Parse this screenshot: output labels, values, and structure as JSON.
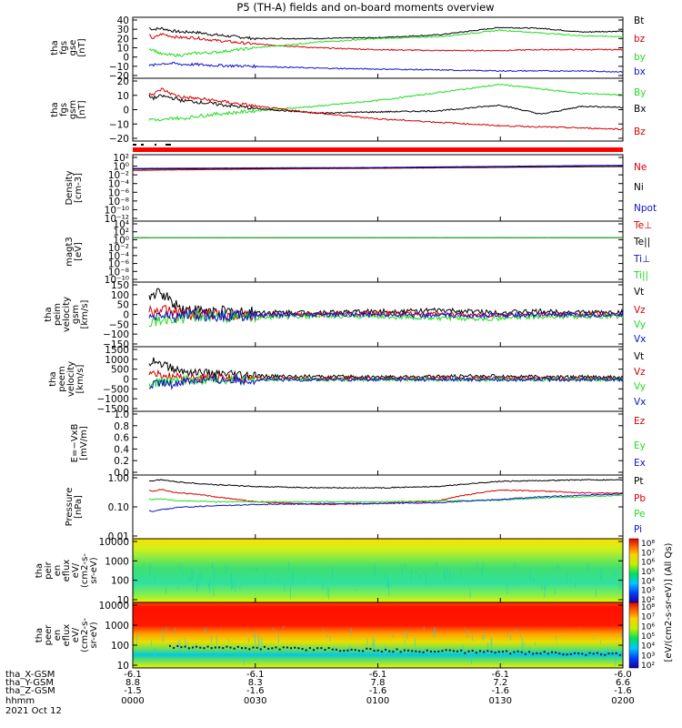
{
  "title": "P5 (TH-A) fields and on-board moments overview",
  "colors": {
    "black": "#000000",
    "red": "#d40000",
    "green": "#22dd22",
    "blue": "#1010d0"
  },
  "chart_data": [
    {
      "type": "line",
      "panel": "fgs_gse",
      "ylabel": [
        "tha",
        "fgs",
        "gse",
        "[nT]"
      ],
      "yticks": [
        "40",
        "30",
        "20",
        "10",
        "0",
        "−10",
        "−20"
      ],
      "ylim": [
        -20,
        40
      ],
      "legend": [
        "Bt",
        "bz",
        "by",
        "bx"
      ],
      "series": [
        {
          "name": "Bt",
          "color": "black",
          "x": [
            0,
            3,
            5,
            7,
            10,
            12,
            15,
            20,
            30,
            45,
            60,
            75,
            90,
            100,
            110,
            120
          ],
          "values": [
            26,
            33,
            30,
            31,
            28,
            27,
            27,
            24,
            20,
            20,
            21,
            24,
            32,
            31,
            27,
            28
          ]
        },
        {
          "name": "bz",
          "color": "red",
          "x": [
            0,
            3,
            5,
            7,
            10,
            12,
            15,
            20,
            30,
            45,
            60,
            75,
            90,
            100,
            110,
            120
          ],
          "values": [
            15,
            27,
            20,
            25,
            22,
            21,
            21,
            18,
            14,
            10,
            8,
            7,
            7,
            8,
            8,
            8
          ]
        },
        {
          "name": "by",
          "color": "green",
          "x": [
            0,
            3,
            5,
            7,
            10,
            12,
            15,
            20,
            30,
            45,
            60,
            75,
            90,
            100,
            110,
            120
          ],
          "values": [
            5,
            10,
            8,
            3,
            2,
            2,
            4,
            5,
            10,
            16,
            20,
            22,
            29,
            26,
            23,
            22
          ]
        },
        {
          "name": "bx",
          "color": "blue",
          "x": [
            0,
            3,
            5,
            7,
            10,
            12,
            15,
            20,
            30,
            45,
            60,
            75,
            90,
            100,
            110,
            120
          ],
          "values": [
            -13,
            -10,
            -9,
            -7,
            -7,
            -8,
            -8,
            -9,
            -10,
            -12,
            -13,
            -14,
            -15,
            -15,
            -15,
            -16
          ]
        }
      ]
    },
    {
      "type": "line",
      "panel": "fgs_gsm",
      "ylabel": [
        "tha",
        "fgs",
        "gsm",
        "[nT]"
      ],
      "yticks": [
        "20",
        "10",
        "0",
        "−10",
        "−20"
      ],
      "ylim": [
        -25,
        25
      ],
      "legend": [
        "By",
        "Bx",
        "Bz"
      ],
      "series": [
        {
          "name": "By",
          "color": "green",
          "x": [
            0,
            3,
            5,
            7,
            10,
            12,
            15,
            20,
            30,
            45,
            60,
            75,
            90,
            100,
            110,
            120
          ],
          "values": [
            -5,
            -10,
            -8,
            -10,
            -7,
            -8,
            -6,
            -4,
            -1,
            3,
            8,
            15,
            22,
            18,
            14,
            13
          ]
        },
        {
          "name": "Bx",
          "color": "black",
          "x": [
            0,
            3,
            5,
            7,
            10,
            12,
            15,
            20,
            30,
            45,
            60,
            75,
            90,
            100,
            110,
            120
          ],
          "values": [
            0,
            14,
            10,
            12,
            10,
            8,
            7,
            5,
            1,
            -3,
            -2,
            -1,
            4,
            -4,
            3,
            2
          ]
        },
        {
          "name": "Bz",
          "color": "red",
          "x": [
            0,
            3,
            5,
            7,
            10,
            12,
            15,
            20,
            30,
            45,
            60,
            75,
            90,
            100,
            110,
            120
          ],
          "values": [
            3,
            18,
            13,
            18,
            13,
            11,
            10,
            8,
            3,
            -3,
            -8,
            -11,
            -14,
            -15,
            -16,
            -17
          ]
        }
      ]
    },
    {
      "type": "line",
      "panel": "density",
      "scale": "log",
      "ylabel": [
        "Density",
        "[cm-3]"
      ],
      "yticks": [
        "10²",
        "10⁰",
        "10⁻²",
        "10⁻⁴",
        "10⁻⁶",
        "10⁻⁸",
        "10⁻¹⁰",
        "10⁻¹²"
      ],
      "ylim": [
        -12,
        2
      ],
      "legend": [
        "Ne",
        "Ni",
        "Npot"
      ],
      "series": [
        {
          "name": "Ne",
          "color": "red",
          "x": [
            0,
            30,
            60,
            90,
            120
          ],
          "values": [
            0.1,
            0.2,
            0.3,
            0.5,
            0.8
          ]
        },
        {
          "name": "Ni",
          "color": "black",
          "x": [
            0,
            30,
            60,
            90,
            120
          ],
          "values": [
            0.2,
            0.3,
            0.4,
            0.6,
            0.9
          ]
        },
        {
          "name": "Npot",
          "color": "blue",
          "x": [
            0,
            30,
            60,
            90,
            120
          ],
          "values": [
            0.3,
            0.4,
            0.5,
            0.9,
            1.6
          ]
        }
      ]
    },
    {
      "type": "line",
      "panel": "temperature",
      "scale": "log",
      "ylabel": [
        "magt3",
        "[eV]"
      ],
      "yticks": [
        "10⁴",
        "10²",
        "10⁰",
        "10⁻²",
        "10⁻⁴",
        "10⁻⁶",
        "10⁻⁸",
        "10⁻¹⁰"
      ],
      "ylim": [
        -10,
        4
      ],
      "legend": [
        "Te⊥",
        "Te||",
        "Ti⊥",
        "Ti||"
      ],
      "series": [
        {
          "name": "Te⊥",
          "color": "red",
          "x": [
            0,
            30,
            60,
            90,
            120
          ],
          "values": [
            3.3,
            3.3,
            3.3,
            3.3,
            3.3
          ]
        },
        {
          "name": "Te||",
          "color": "black",
          "x": [
            0,
            30,
            60,
            90,
            120
          ],
          "values": [
            3.4,
            3.4,
            3.4,
            3.4,
            3.4
          ]
        },
        {
          "name": "Ti⊥",
          "color": "blue",
          "x": [
            0,
            30,
            60,
            90,
            120
          ],
          "values": [
            3.5,
            3.5,
            3.5,
            3.5,
            3.5
          ]
        },
        {
          "name": "Ti||",
          "color": "green",
          "x": [
            0,
            30,
            60,
            90,
            120
          ],
          "values": [
            3.5,
            3.5,
            3.5,
            3.5,
            3.5
          ]
        }
      ]
    },
    {
      "type": "line",
      "panel": "peim_velocity",
      "ylabel": [
        "tha",
        "peim",
        "velocity",
        "gsm",
        "[km/s]"
      ],
      "yticks": [
        "150",
        "100",
        "50",
        "0",
        "−50",
        "−100",
        "−150"
      ],
      "ylim": [
        -150,
        150
      ],
      "legend": [
        "Vt",
        "Vz",
        "Vy",
        "Vx"
      ],
      "series": [
        {
          "name": "Vt",
          "color": "black",
          "x": [
            0,
            3,
            5,
            7,
            10,
            12,
            15,
            20,
            30,
            45,
            60,
            75,
            90,
            100,
            110,
            120
          ],
          "values": [
            40,
            80,
            100,
            110,
            60,
            30,
            20,
            15,
            10,
            10,
            15,
            20,
            10,
            15,
            10,
            10
          ]
        },
        {
          "name": "Vz",
          "color": "red",
          "x": [
            0,
            3,
            5,
            7,
            10,
            12,
            15,
            20,
            30,
            45,
            60,
            75,
            90,
            100,
            110,
            120
          ],
          "values": [
            20,
            30,
            10,
            20,
            10,
            5,
            0,
            0,
            -5,
            0,
            5,
            0,
            -5,
            0,
            0,
            0
          ]
        },
        {
          "name": "Vy",
          "color": "green",
          "x": [
            0,
            3,
            5,
            7,
            10,
            12,
            15,
            20,
            30,
            45,
            60,
            75,
            90,
            100,
            110,
            120
          ],
          "values": [
            -20,
            -60,
            -40,
            -30,
            -20,
            -20,
            -10,
            -10,
            -15,
            -10,
            -10,
            -20,
            -20,
            -10,
            -10,
            -10
          ]
        },
        {
          "name": "Vx",
          "color": "blue",
          "x": [
            0,
            3,
            5,
            7,
            10,
            12,
            15,
            20,
            30,
            45,
            60,
            75,
            90,
            100,
            110,
            120
          ],
          "values": [
            -10,
            -30,
            -20,
            0,
            -10,
            0,
            -5,
            -5,
            -5,
            0,
            0,
            -5,
            -5,
            0,
            -5,
            0
          ]
        }
      ]
    },
    {
      "type": "line",
      "panel": "peem_velocity",
      "ylabel": [
        "tha",
        "peem",
        "velocity",
        "[km/s]"
      ],
      "yticks": [
        "1500",
        "1000",
        "500",
        "0",
        "−500",
        "−1000",
        "−1500"
      ],
      "ylim": [
        -1500,
        1500
      ],
      "legend": [
        "Vt",
        "Vz",
        "Vy",
        "Vx"
      ],
      "series": [
        {
          "name": "Vt",
          "color": "black",
          "x": [
            0,
            3,
            5,
            7,
            10,
            12,
            15,
            20,
            30,
            45,
            60,
            75,
            90,
            100,
            110,
            120
          ],
          "values": [
            100,
            600,
            1000,
            800,
            500,
            400,
            350,
            250,
            150,
            120,
            100,
            120,
            150,
            100,
            100,
            80
          ]
        },
        {
          "name": "Vz",
          "color": "red",
          "x": [
            0,
            3,
            5,
            7,
            10,
            12,
            15,
            20,
            30,
            45,
            60,
            75,
            90,
            100,
            110,
            120
          ],
          "values": [
            50,
            200,
            300,
            150,
            100,
            80,
            50,
            40,
            30,
            20,
            20,
            30,
            40,
            20,
            20,
            20
          ]
        },
        {
          "name": "Vy",
          "color": "green",
          "x": [
            0,
            3,
            5,
            7,
            10,
            12,
            15,
            20,
            30,
            45,
            60,
            75,
            90,
            100,
            110,
            120
          ],
          "values": [
            -50,
            -400,
            -200,
            -150,
            -100,
            -60,
            -50,
            -40,
            -30,
            -30,
            -20,
            -30,
            -20,
            -30,
            -20,
            -20
          ]
        },
        {
          "name": "Vx",
          "color": "blue",
          "x": [
            0,
            3,
            5,
            7,
            10,
            12,
            15,
            20,
            30,
            45,
            60,
            75,
            90,
            100,
            110,
            120
          ],
          "values": [
            0,
            -600,
            -300,
            -200,
            -300,
            -100,
            -60,
            -50,
            -40,
            -30,
            -20,
            -30,
            -30,
            -20,
            -20,
            -20
          ]
        }
      ]
    },
    {
      "type": "line",
      "panel": "efield",
      "ylabel": [
        "E=−VxB",
        "[mV/m]"
      ],
      "yticks": [
        "1.0",
        "0.8",
        "0.6",
        "0.4",
        "0.2",
        "0.0"
      ],
      "ylim": [
        0,
        1
      ],
      "legend": [
        "Ez",
        "Ey",
        "Ex"
      ],
      "series": []
    },
    {
      "type": "line",
      "panel": "pressure",
      "scale": "log",
      "ylabel": [
        "Pressure",
        "[nPa]"
      ],
      "yticks": [
        "1.00",
        "0.10",
        "0.01"
      ],
      "ylim": [
        -2,
        0
      ],
      "legend": [
        "Pt",
        "Pb",
        "Pe",
        "Pi"
      ],
      "series": [
        {
          "name": "Pt",
          "color": "black",
          "x": [
            0,
            3,
            5,
            7,
            10,
            12,
            15,
            20,
            30,
            45,
            60,
            75,
            90,
            100,
            110,
            120
          ],
          "values": [
            0.55,
            0.75,
            0.8,
            0.85,
            0.75,
            0.7,
            0.65,
            0.58,
            0.5,
            0.45,
            0.45,
            0.5,
            0.75,
            0.8,
            0.85,
            0.85
          ]
        },
        {
          "name": "Pb",
          "color": "red",
          "x": [
            0,
            3,
            5,
            7,
            10,
            12,
            15,
            20,
            30,
            45,
            60,
            75,
            90,
            100,
            110,
            120
          ],
          "values": [
            0.25,
            0.4,
            0.35,
            0.4,
            0.32,
            0.3,
            0.28,
            0.22,
            0.15,
            0.12,
            0.13,
            0.16,
            0.38,
            0.35,
            0.3,
            0.3
          ]
        },
        {
          "name": "Pe",
          "color": "green",
          "x": [
            0,
            3,
            5,
            7,
            10,
            12,
            15,
            20,
            30,
            45,
            60,
            75,
            90,
            100,
            110,
            120
          ],
          "values": [
            0.15,
            0.2,
            0.18,
            0.19,
            0.17,
            0.16,
            0.16,
            0.15,
            0.15,
            0.15,
            0.15,
            0.16,
            0.17,
            0.2,
            0.22,
            0.25
          ]
        },
        {
          "name": "Pi",
          "color": "blue",
          "x": [
            0,
            3,
            5,
            7,
            10,
            12,
            15,
            20,
            30,
            45,
            60,
            75,
            90,
            100,
            110,
            120
          ],
          "values": [
            0.1,
            0.08,
            0.07,
            0.08,
            0.09,
            0.1,
            0.1,
            0.11,
            0.12,
            0.13,
            0.13,
            0.14,
            0.18,
            0.22,
            0.25,
            0.28
          ]
        }
      ]
    },
    {
      "type": "heatmap",
      "panel": "peir_en_eflux",
      "ylabel": [
        "tha",
        "peir",
        "en",
        "eflux",
        "eV/",
        "(cm2-s-",
        "sr-eV)"
      ],
      "yticks": [
        "10000",
        "1000",
        "100",
        "10"
      ]
    },
    {
      "type": "heatmap",
      "panel": "peer_en_eflux",
      "ylabel": [
        "tha",
        "peer",
        "en",
        "eflux",
        "eV/",
        "(cm2-s-",
        "sr-eV)"
      ],
      "yticks": [
        "10000",
        "1000",
        "100",
        "10"
      ]
    }
  ],
  "colorbar": {
    "ticks": [
      "10⁸",
      "10⁷",
      "10⁶",
      "10⁵",
      "10⁴",
      "10³",
      "10²"
    ],
    "label": "[eV/(cm2-s-sr-eV)] (All Qs)"
  },
  "xaxis": {
    "row_labels": [
      "tha_X-GSM",
      "tha_Y-GSM",
      "tha_Z-GSM",
      "hhmm",
      "2021 Oct 12"
    ],
    "ticks": [
      {
        "x": 0,
        "X": "-6.1",
        "Y": "8.8",
        "Z": "-1.5",
        "hhmm": "0000"
      },
      {
        "x": 30,
        "X": "-6.1",
        "Y": "8.3",
        "Z": "-1.6",
        "hhmm": "0030"
      },
      {
        "x": 60,
        "X": "-6.1",
        "Y": "7.8",
        "Z": "-1.6",
        "hhmm": "0100"
      },
      {
        "x": 90,
        "X": "-6.1",
        "Y": "7.2",
        "Z": "-1.6",
        "hhmm": "0130"
      },
      {
        "x": 120,
        "X": "-6.0",
        "Y": "6.6",
        "Z": "-1.6",
        "hhmm": "0200"
      }
    ]
  }
}
